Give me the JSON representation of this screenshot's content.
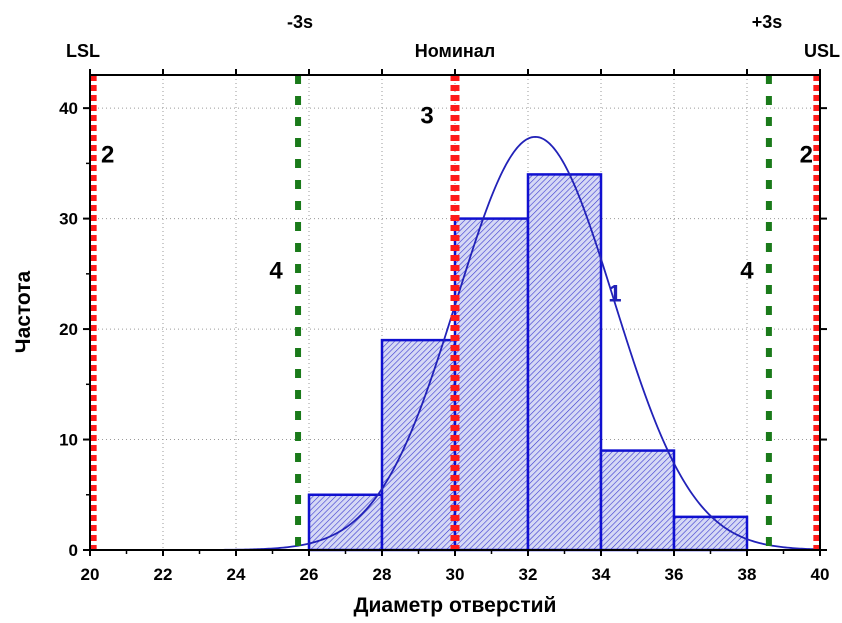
{
  "chart_data": {
    "type": "bar",
    "xlabel": "Диаметр отверстий",
    "ylabel": "Частота",
    "xlim": [
      20,
      40
    ],
    "ylim": [
      0,
      43
    ],
    "x_ticks": [
      "20",
      "22",
      "24",
      "26",
      "28",
      "30",
      "32",
      "34",
      "36",
      "38",
      "40"
    ],
    "y_ticks": [
      "0",
      "10",
      "20",
      "30",
      "40"
    ],
    "grid": true,
    "bins": [
      {
        "from": 26,
        "to": 28,
        "value": 5
      },
      {
        "from": 28,
        "to": 30,
        "value": 19
      },
      {
        "from": 30,
        "to": 32,
        "value": 30
      },
      {
        "from": 32,
        "to": 34,
        "value": 34
      },
      {
        "from": 34,
        "to": 36,
        "value": 9
      },
      {
        "from": 36,
        "to": 38,
        "value": 3
      }
    ],
    "normal_curve": {
      "mean": 32.2,
      "sigma": 2.15,
      "peak": 37.4,
      "label": "1"
    },
    "reference_lines": [
      {
        "x": 20.1,
        "top_label": "LSL",
        "number_label": "2",
        "number_y": 36,
        "color": "#ff1a1a"
      },
      {
        "x": 39.9,
        "top_label": "USL",
        "number_label": "2",
        "number_y": 36,
        "color": "#ff1a1a"
      },
      {
        "x": 30.0,
        "top_label": "Номинал",
        "number_label": "3",
        "number_y": 39.5,
        "color": "#ff1a1a"
      },
      {
        "x": 25.7,
        "top_label": "-3s",
        "number_label": "4",
        "number_y": 25.5,
        "color": "#1a7a1a"
      },
      {
        "x": 38.6,
        "top_label": "+3s",
        "number_label": "4",
        "number_y": 25.5,
        "color": "#1a7a1a"
      }
    ],
    "colors": {
      "bar_fill": "#c8cdf2",
      "bar_stroke": "#1010d0",
      "curve": "#2222b8"
    }
  }
}
